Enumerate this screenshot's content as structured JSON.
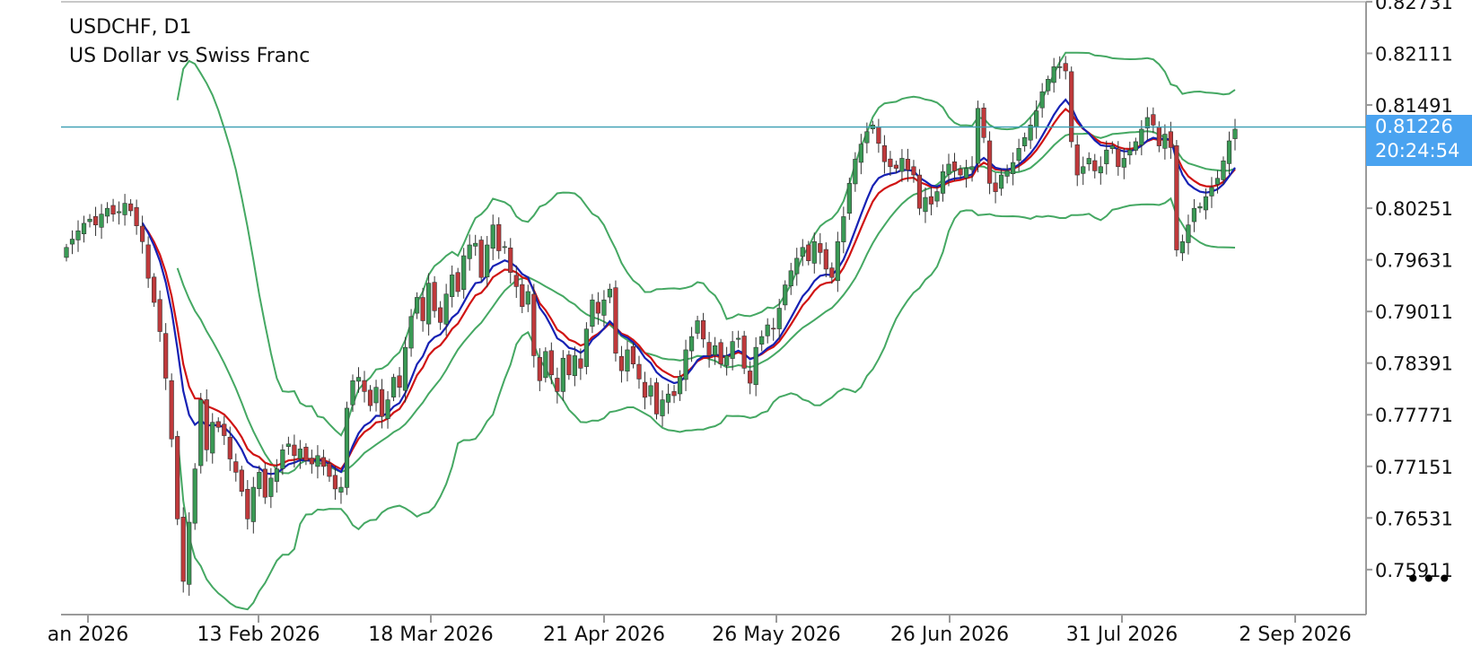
{
  "header": {
    "symbol": "USDCHF, D1",
    "description": "US Dollar vs Swiss Franc"
  },
  "price_label": {
    "price": "0.81226",
    "countdown": "20:24:54"
  },
  "menu": {
    "more_icon": "more-dots-icon",
    "more_label": "•••"
  },
  "colors": {
    "up_candle": "#3a9a55",
    "down_candle": "#c0393b",
    "bollinger": "#45a863",
    "ma_blue": "#1621b4",
    "ma_red": "#d01313",
    "price_line": "#3a9eb2",
    "price_tag": "#4aa3f0"
  },
  "chart_data": {
    "type": "candlestick",
    "timeframe": "D1",
    "y_ticks": [
      "0.82731",
      "0.82111",
      "0.81491",
      "0.80871",
      "0.80251",
      "0.79631",
      "0.79011",
      "0.78391",
      "0.77771",
      "0.77151",
      "0.76531",
      "0.75911"
    ],
    "x_ticks": [
      "an 2026",
      "13 Feb 2026",
      "18 Mar 2026",
      "21 Apr 2026",
      "26 May 2026",
      "26 Jun 2026",
      "31 Jul 2026",
      "2 Sep 2026"
    ],
    "ylim": [
      0.7536,
      0.8273
    ],
    "current_price": 0.81226,
    "closes": [
      0.7978,
      0.7988,
      0.7998,
      0.8007,
      0.8012,
      0.8005,
      0.8018,
      0.8025,
      0.8018,
      0.8021,
      0.8031,
      0.8022,
      0.8004,
      0.7985,
      0.7941,
      0.7912,
      0.7877,
      0.7821,
      0.7748,
      0.7652,
      0.7577,
      0.7648,
      0.7712,
      0.7795,
      0.7735,
      0.7768,
      0.7762,
      0.7752,
      0.7724,
      0.7708,
      0.7685,
      0.7652,
      0.769,
      0.7708,
      0.7678,
      0.7701,
      0.7712,
      0.7735,
      0.7742,
      0.7728,
      0.7736,
      0.7722,
      0.7718,
      0.7728,
      0.7715,
      0.7703,
      0.7688,
      0.769,
      0.7785,
      0.7818,
      0.7822,
      0.7805,
      0.7788,
      0.781,
      0.7775,
      0.7795,
      0.7822,
      0.781,
      0.7858,
      0.7895,
      0.7918,
      0.789,
      0.7935,
      0.7902,
      0.7888,
      0.7922,
      0.7945,
      0.7925,
      0.7968,
      0.7981,
      0.7983,
      0.7942,
      0.7981,
      0.8005,
      0.7974,
      0.7979,
      0.7948,
      0.7931,
      0.7907,
      0.7925,
      0.7848,
      0.7818,
      0.7853,
      0.7825,
      0.7805,
      0.7845,
      0.7825,
      0.7848,
      0.7833,
      0.788,
      0.7915,
      0.7899,
      0.7915,
      0.7928,
      0.7851,
      0.783,
      0.7855,
      0.7838,
      0.782,
      0.7798,
      0.7812,
      0.7778,
      0.7795,
      0.7802,
      0.78,
      0.7823,
      0.7855,
      0.7871,
      0.789,
      0.7868,
      0.7848,
      0.786,
      0.7838,
      0.7848,
      0.7865,
      0.7869,
      0.7833,
      0.7815,
      0.7858,
      0.7871,
      0.7885,
      0.788,
      0.7905,
      0.7933,
      0.795,
      0.7965,
      0.7978,
      0.7962,
      0.7985,
      0.7972,
      0.7952,
      0.7942,
      0.7985,
      0.8015,
      0.8055,
      0.8084,
      0.8102,
      0.8117,
      0.8125,
      0.8103,
      0.8081,
      0.8075,
      0.8073,
      0.8085,
      0.8071,
      0.8065,
      0.8025,
      0.8038,
      0.803,
      0.8045,
      0.8069,
      0.8078,
      0.807,
      0.8065,
      0.8073,
      0.8075,
      0.8145,
      0.811,
      0.8055,
      0.8045,
      0.8065,
      0.807,
      0.808,
      0.8097,
      0.811,
      0.8125,
      0.8142,
      0.8165,
      0.818,
      0.8195,
      0.8195,
      0.819,
      0.8105,
      0.8065,
      0.8075,
      0.8085,
      0.807,
      0.8075,
      0.8095,
      0.81,
      0.8075,
      0.8085,
      0.8095,
      0.8105,
      0.812,
      0.8134,
      0.8125,
      0.81,
      0.8114,
      0.8098,
      0.7975,
      0.7985,
      0.8005,
      0.8025,
      0.8027,
      0.8039,
      0.805,
      0.8061,
      0.8082,
      0.8106,
      0.812
    ]
  }
}
